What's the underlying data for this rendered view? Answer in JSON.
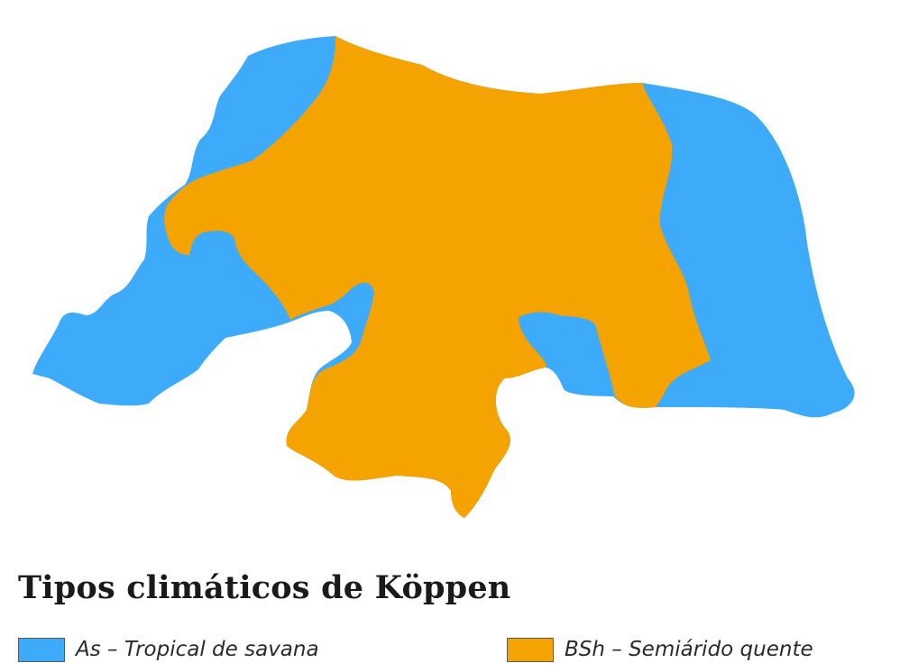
{
  "legend": {
    "title": "Tipos climáticos de Köppen",
    "items": [
      {
        "code": "As",
        "label": "As – Tropical de savana",
        "color": "#3daafa"
      },
      {
        "code": "BSh",
        "label": "BSh – Semiárido quente",
        "color": "#f4a300"
      }
    ]
  }
}
